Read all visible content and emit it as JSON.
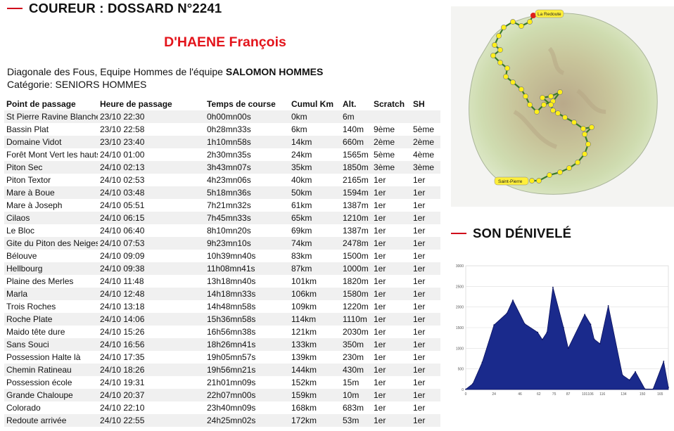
{
  "header": {
    "title": "COUREUR : DOSSARD N°2241"
  },
  "runner": {
    "name": "D'HAENE François"
  },
  "info": {
    "line1_prefix": "Diagonale des Fous, Equipe Hommes de l'équipe ",
    "team": "SALOMON HOMMES",
    "category": "Catégorie: SENIORS HOMMES"
  },
  "table": {
    "columns": [
      "Point de passage",
      "Heure de passage",
      "Temps de course",
      "Cumul Km",
      "Alt.",
      "Scratch",
      "SH"
    ],
    "rows": [
      [
        "St Pierre Ravine Blanche",
        "23/10 22:30",
        "0h00mn00s",
        "0km",
        "6m",
        "",
        ""
      ],
      [
        "Bassin Plat",
        "23/10 22:58",
        "0h28mn33s",
        "6km",
        "140m",
        "9ème",
        "5ème"
      ],
      [
        "Domaine Vidot",
        "23/10 23:40",
        "1h10mn58s",
        "14km",
        "660m",
        "2ème",
        "2ème"
      ],
      [
        "Forêt Mont Vert les hauts",
        "24/10 01:00",
        "2h30mn35s",
        "24km",
        "1565m",
        "5ème",
        "4ème"
      ],
      [
        "Piton Sec",
        "24/10 02:13",
        "3h43mn07s",
        "35km",
        "1850m",
        "3ème",
        "3ème"
      ],
      [
        "Piton Textor",
        "24/10 02:53",
        "4h23mn06s",
        "40km",
        "2165m",
        "1er",
        "1er"
      ],
      [
        "Mare à Boue",
        "24/10 03:48",
        "5h18mn36s",
        "50km",
        "1594m",
        "1er",
        "1er"
      ],
      [
        "Mare à Joseph",
        "24/10 05:51",
        "7h21mn32s",
        "61km",
        "1387m",
        "1er",
        "1er"
      ],
      [
        "Cilaos",
        "24/10 06:15",
        "7h45mn33s",
        "65km",
        "1210m",
        "1er",
        "1er"
      ],
      [
        "Le Bloc",
        "24/10 06:40",
        "8h10mn20s",
        "69km",
        "1387m",
        "1er",
        "1er"
      ],
      [
        "Gite du Piton des Neiges",
        "24/10 07:53",
        "9h23mn10s",
        "74km",
        "2478m",
        "1er",
        "1er"
      ],
      [
        "Bélouve",
        "24/10 09:09",
        "10h39mn40s",
        "83km",
        "1500m",
        "1er",
        "1er"
      ],
      [
        "Hellbourg",
        "24/10 09:38",
        "11h08mn41s",
        "87km",
        "1000m",
        "1er",
        "1er"
      ],
      [
        "Plaine des Merles",
        "24/10 11:48",
        "13h18mn40s",
        "101km",
        "1820m",
        "1er",
        "1er"
      ],
      [
        "Marla",
        "24/10 12:48",
        "14h18mn33s",
        "106km",
        "1580m",
        "1er",
        "1er"
      ],
      [
        "Trois Roches",
        "24/10 13:18",
        "14h48mn58s",
        "109km",
        "1220m",
        "1er",
        "1er"
      ],
      [
        "Roche Plate",
        "24/10 14:06",
        "15h36mn58s",
        "114km",
        "1110m",
        "1er",
        "1er"
      ],
      [
        "Maido tête dure",
        "24/10 15:26",
        "16h56mn38s",
        "121km",
        "2030m",
        "1er",
        "1er"
      ],
      [
        "Sans Souci",
        "24/10 16:56",
        "18h26mn41s",
        "133km",
        "350m",
        "1er",
        "1er"
      ],
      [
        "Possession Halte là",
        "24/10 17:35",
        "19h05mn57s",
        "139km",
        "230m",
        "1er",
        "1er"
      ],
      [
        "Chemin Ratineau",
        "24/10 18:26",
        "19h56mn21s",
        "144km",
        "430m",
        "1er",
        "1er"
      ],
      [
        "Possession école",
        "24/10 19:31",
        "21h01mn09s",
        "152km",
        "15m",
        "1er",
        "1er"
      ],
      [
        "Grande Chaloupe",
        "24/10 20:37",
        "22h07mn00s",
        "159km",
        "10m",
        "1er",
        "1er"
      ],
      [
        "Colorado",
        "24/10 22:10",
        "23h40mn09s",
        "168km",
        "683m",
        "1er",
        "1er"
      ],
      [
        "Redoute arrivée",
        "24/10 22:55",
        "24h25mn02s",
        "172km",
        "53m",
        "1er",
        "1er"
      ]
    ]
  },
  "map": {
    "label_start": "Saint-Pierre",
    "label_end": "La Redoute"
  },
  "elevation": {
    "title": "SON DÉNIVELÉ",
    "colors": {
      "fill": "#1a2a8c",
      "stroke": "#0b1260",
      "accent": "#d0021b"
    },
    "chart_data": {
      "type": "area",
      "x": [
        0,
        6,
        14,
        24,
        35,
        40,
        50,
        61,
        65,
        69,
        74,
        83,
        87,
        101,
        106,
        109,
        114,
        121,
        133,
        139,
        144,
        152,
        159,
        168,
        172
      ],
      "y": [
        6,
        140,
        660,
        1565,
        1850,
        2165,
        1594,
        1387,
        1210,
        1387,
        2478,
        1500,
        1000,
        1820,
        1580,
        1220,
        1110,
        2030,
        350,
        230,
        430,
        15,
        10,
        683,
        53
      ],
      "ylim": [
        0,
        3000
      ],
      "yticks": [
        "0",
        "500",
        "1000",
        "1500",
        "2000",
        "2500",
        "3000"
      ],
      "xticks": [
        "0",
        "24",
        "46",
        "62",
        "75",
        "87",
        "101",
        "106",
        "116",
        "134",
        "150",
        "165"
      ],
      "grid": true
    }
  }
}
